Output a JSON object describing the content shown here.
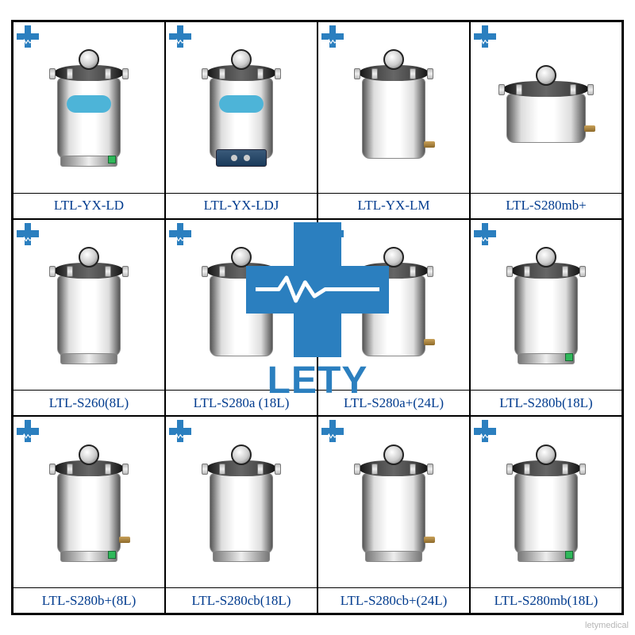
{
  "brand": {
    "name": "LETY",
    "logo_color": "#2b7fbf",
    "wave_color": "#ffffff",
    "corner_watermark": "letymedical"
  },
  "label_style": {
    "color": "#003b8e",
    "font_size_pt": 13,
    "font_family": "Times New Roman"
  },
  "grid": {
    "rows": 3,
    "cols": 4,
    "border_color": "#000000",
    "products": [
      {
        "label": "LTL-YX-LD",
        "variant": "tall",
        "has_sticker": true,
        "has_base": true,
        "has_control": false,
        "has_valve": false,
        "has_btn": true
      },
      {
        "label": "LTL-YX-LDJ",
        "variant": "tall",
        "has_sticker": true,
        "has_base": false,
        "has_control": true,
        "has_valve": false,
        "has_btn": false
      },
      {
        "label": "LTL-YX-LM",
        "variant": "tall",
        "has_sticker": false,
        "has_base": false,
        "has_control": false,
        "has_valve": true,
        "has_btn": false
      },
      {
        "label": "LTL-S280mb+",
        "variant": "short",
        "has_sticker": false,
        "has_base": false,
        "has_control": false,
        "has_valve": true,
        "has_btn": false
      },
      {
        "label": "LTL-S260(8L)",
        "variant": "tall",
        "has_sticker": false,
        "has_base": true,
        "has_control": false,
        "has_valve": false,
        "has_btn": false
      },
      {
        "label": "LTL-S280a (18L)",
        "variant": "tall",
        "has_sticker": false,
        "has_base": false,
        "has_control": false,
        "has_valve": false,
        "has_btn": false
      },
      {
        "label": "LTL-S280a+(24L)",
        "variant": "tall",
        "has_sticker": false,
        "has_base": false,
        "has_control": false,
        "has_valve": true,
        "has_btn": false
      },
      {
        "label": "LTL-S280b(18L)",
        "variant": "tall",
        "has_sticker": false,
        "has_base": true,
        "has_control": false,
        "has_valve": false,
        "has_btn": true
      },
      {
        "label": "LTL-S280b+(8L)",
        "variant": "tall",
        "has_sticker": false,
        "has_base": true,
        "has_control": false,
        "has_valve": true,
        "has_btn": true
      },
      {
        "label": "LTL-S280cb(18L)",
        "variant": "tall",
        "has_sticker": false,
        "has_base": true,
        "has_control": false,
        "has_valve": false,
        "has_btn": false
      },
      {
        "label": "LTL-S280cb+(24L)",
        "variant": "tall",
        "has_sticker": false,
        "has_base": true,
        "has_control": false,
        "has_valve": true,
        "has_btn": false
      },
      {
        "label": "LTL-S280mb(18L)",
        "variant": "tall",
        "has_sticker": false,
        "has_base": true,
        "has_control": false,
        "has_valve": false,
        "has_btn": true
      }
    ]
  }
}
